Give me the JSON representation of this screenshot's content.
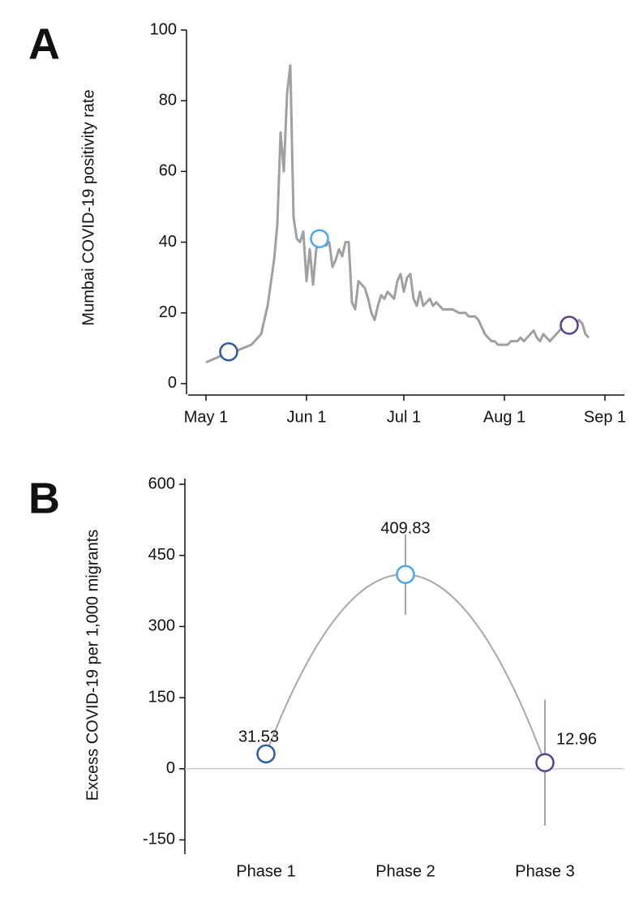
{
  "chart_data": [
    {
      "type": "line",
      "panel_label": "A",
      "ylabel": "Mumbai COVID-19 positivity rate",
      "color": "#a0a0a0",
      "x": [
        0,
        5,
        7,
        10,
        14,
        17,
        19,
        21,
        22,
        23,
        24,
        25,
        26,
        27,
        28,
        29,
        30,
        31,
        32,
        33,
        34,
        35,
        36,
        37,
        38,
        39,
        40,
        41,
        42,
        43,
        44,
        45,
        46,
        47,
        48,
        49,
        50,
        51,
        52,
        53,
        54,
        55,
        56,
        57,
        58,
        59,
        60,
        61,
        62,
        63,
        64,
        65,
        66,
        67,
        68,
        69,
        70,
        71,
        72,
        73,
        74,
        75,
        76,
        77,
        78,
        79,
        80,
        81,
        82,
        83,
        84,
        85,
        86,
        87,
        88,
        89,
        90,
        91,
        92,
        93,
        94,
        95,
        96,
        97,
        98,
        99,
        100,
        101,
        102,
        103,
        104,
        105,
        106,
        107,
        108,
        109,
        110,
        111,
        112,
        113,
        114,
        115,
        116,
        117,
        118
      ],
      "values": [
        6,
        8,
        9,
        9.5,
        11,
        14,
        22,
        35,
        45,
        71,
        60,
        82,
        90,
        47,
        41,
        40,
        43,
        29,
        38,
        28,
        38,
        41,
        41,
        39,
        40,
        33,
        35,
        38,
        36,
        40,
        40,
        23,
        21,
        29,
        28,
        27,
        24,
        20,
        18,
        22,
        25,
        24,
        26,
        25,
        24,
        29,
        31,
        26,
        30,
        31,
        24,
        22,
        26,
        22,
        23,
        24,
        22,
        23,
        22,
        21,
        21,
        21,
        21,
        20.5,
        20,
        20,
        20,
        19,
        19,
        19,
        18,
        16,
        14,
        13,
        12,
        12,
        11,
        11,
        11,
        11,
        12,
        12,
        12,
        13,
        12,
        13,
        14,
        15,
        13,
        12,
        14,
        13,
        12,
        13,
        14,
        15,
        16,
        16.5,
        16,
        17,
        17,
        18,
        17,
        14,
        13
      ],
      "highlights": {
        "x": [
          7,
          35,
          112
        ],
        "values": [
          9,
          41,
          16.5
        ],
        "colors": [
          "#2a5caa",
          "#4aa8f0",
          "#5b3f99"
        ]
      },
      "xlim": [
        -5.5,
        129
      ],
      "ylim": [
        -3,
        100
      ],
      "xticks": [
        {
          "value": 0,
          "label": "May 1"
        },
        {
          "value": 31,
          "label": "Jun 1"
        },
        {
          "value": 61,
          "label": "Jul 1"
        },
        {
          "value": 92,
          "label": "Aug 1"
        },
        {
          "value": 123,
          "label": "Sep 1"
        }
      ],
      "yticks": [
        0,
        20,
        40,
        60,
        80,
        100
      ]
    },
    {
      "type": "errorbar",
      "panel_label": "B",
      "ylabel": "Excess COVID-19  per 1,000 migrants",
      "color": "#a8a8a8",
      "categories": [
        "Phase 1",
        "Phase 2",
        "Phase 3"
      ],
      "values": [
        31.53,
        409.83,
        12.96
      ],
      "errors": [
        15,
        85,
        133
      ],
      "colors": [
        "#2a5caa",
        "#4aa8f0",
        "#5b3f99"
      ],
      "ylim": [
        -180,
        612
      ],
      "yticks": [
        -150,
        0,
        150,
        300,
        450,
        600
      ]
    }
  ]
}
